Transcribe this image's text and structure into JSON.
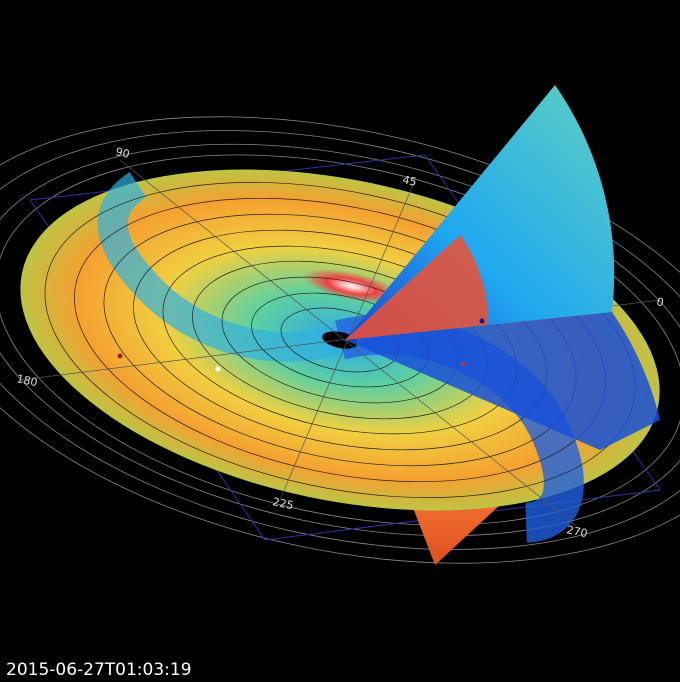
{
  "labels": {
    "angles": [
      "90",
      "45",
      "0",
      "180",
      "225",
      "270"
    ]
  },
  "timestamp": "2015-06-27T01:03:19"
}
